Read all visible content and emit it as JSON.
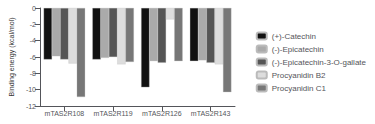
{
  "chart_data": {
    "type": "bar",
    "categories": [
      "mTAS2R108",
      "mTAS2R119",
      "mTAS2R126",
      "mTAS2R143"
    ],
    "series": [
      {
        "name": "(+)-Catechin",
        "color": "#111111",
        "values": [
          -6.3,
          -6.3,
          -9.7,
          -6.5
        ]
      },
      {
        "name": "(-)-Epicatechin",
        "color": "#aaaaaa",
        "values": [
          -5.9,
          -6.1,
          -6.5,
          -6.4
        ]
      },
      {
        "name": "(-)-Epicatechin-3-O-gallate",
        "color": "#555555",
        "values": [
          -6.3,
          -6.0,
          -6.7,
          -6.7
        ]
      },
      {
        "name": "Procyanidin B2",
        "color": "#dddddd",
        "values": [
          -6.8,
          -6.9,
          -1.4,
          -6.9
        ]
      },
      {
        "name": "Procyanidin C1",
        "color": "#777777",
        "values": [
          -10.9,
          -6.6,
          -6.5,
          -10.3
        ]
      }
    ],
    "ylabel": "Binding energy (kcal/mol)",
    "ylim": [
      -12,
      0
    ],
    "yticks": [
      0,
      -2,
      -4,
      -6,
      -8,
      -10,
      -12
    ],
    "grid": false,
    "legend": "right"
  }
}
